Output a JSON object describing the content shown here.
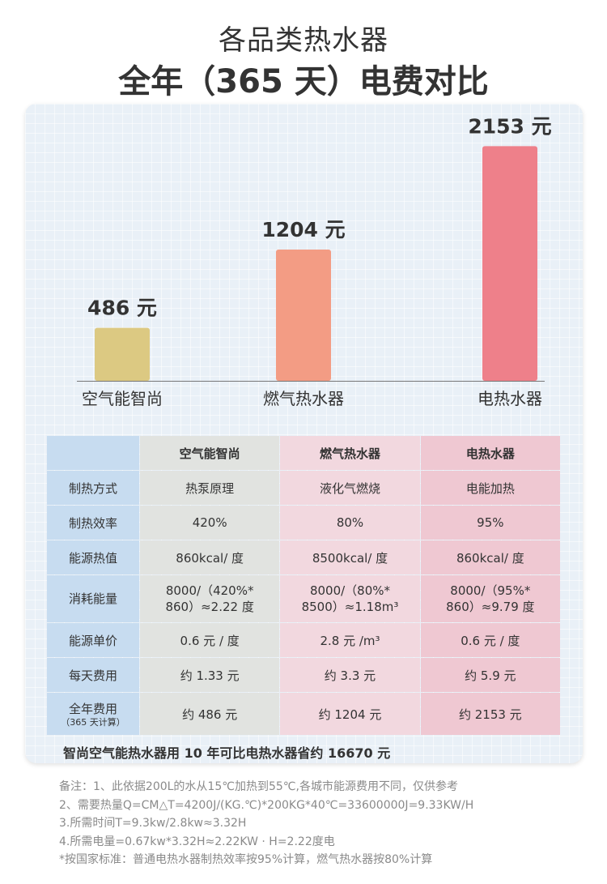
{
  "heading": {
    "line1": "各品类热水器",
    "line2": "全年（365 天）电费对比"
  },
  "chart_data": {
    "type": "bar",
    "categories": [
      "空气能智尚",
      "燃气热水器",
      "电热水器"
    ],
    "values": [
      486,
      1204,
      2153
    ],
    "value_labels": [
      "486 元",
      "1204 元",
      "2153 元"
    ],
    "colors": [
      "#dcc982",
      "#f39c84",
      "#ee808a"
    ],
    "ylim": [
      0,
      2200
    ]
  },
  "table": {
    "headers": [
      "",
      "空气能智尚",
      "燃气热水器",
      "电热水器"
    ],
    "rows": [
      {
        "label": "制热方式",
        "cells": [
          "热泵原理",
          "液化气燃烧",
          "电能加热"
        ]
      },
      {
        "label": "制热效率",
        "cells": [
          "420%",
          "80%",
          "95%"
        ]
      },
      {
        "label": "能源热值",
        "cells": [
          "860kcal/ 度",
          "8500kcal/ 度",
          "860kcal/ 度"
        ]
      },
      {
        "label": "消耗能量",
        "cells": [
          [
            "8000/（420%*",
            "860）≈2.22 度"
          ],
          [
            "8000/（80%*",
            "8500）≈1.18m³"
          ],
          [
            "8000/（95%*",
            "860）≈9.79 度"
          ]
        ]
      },
      {
        "label": "能源单价",
        "cells": [
          "0.6 元 / 度",
          "2.8 元 /m³",
          "0.6 元 / 度"
        ]
      },
      {
        "label": "每天费用",
        "cells": [
          "约 1.33 元",
          "约 3.3 元",
          "约 5.9 元"
        ]
      },
      {
        "label": "全年费用",
        "sublabel": "（365 天计算）",
        "cells": [
          "约 486 元",
          "约 1204 元",
          "约 2153 元"
        ]
      }
    ]
  },
  "summary": "智尚空气能热水器用 10 年可比电热水器省约 16670 元",
  "notes": [
    "备注：1、此依据200L的水从15℃加热到55℃,各城市能源费用不同，仅供参考",
    "2、需要热量Q=CM△T=4200J/(KG.℃)*200KG*40℃=33600000J=9.33KW/H",
    "3.所需时间T=9.3kw/2.8kw≈3.32H",
    "4.所需电量=0.67kw*3.32H≈2.22KW · H=2.22度电",
    "*按国家标准：普通电热水器制热效率按95%计算，燃气热水器按80%计算"
  ]
}
